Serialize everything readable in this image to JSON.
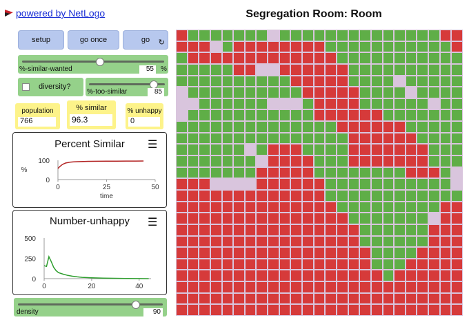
{
  "header": {
    "link_text": "powered by NetLogo",
    "title": "Segregation Room: Room"
  },
  "buttons": {
    "setup": "setup",
    "go_once": "go once",
    "go": "go",
    "forever_icon": "↻"
  },
  "sliders": {
    "similar_wanted": {
      "label": "%-similar-wanted",
      "value": "55",
      "unit": "%",
      "min": 0,
      "max": 100,
      "current": 55
    },
    "too_similar": {
      "label": "%-too-similar",
      "value": "85",
      "min": 0,
      "max": 100,
      "current": 85
    },
    "density": {
      "label": "density",
      "value": "90",
      "min": 50,
      "max": 99,
      "current": 90
    }
  },
  "switch": {
    "label": "diversity?",
    "on": false
  },
  "monitors": {
    "population": {
      "label": "population",
      "value": "766"
    },
    "percent_similar": {
      "label": "% similar",
      "value": "96.3"
    },
    "percent_unhappy": {
      "label": "% unhappy",
      "value": "0"
    }
  },
  "colors": {
    "red_agent": "#d63a3a",
    "green_agent": "#5fae47",
    "empty": "#d9c5dd",
    "button": "#b7c8ee",
    "slider": "#95d18a",
    "monitor": "#fdf38a"
  },
  "chart_data": [
    {
      "type": "line",
      "title": "Percent Similar",
      "ylabel": "%",
      "xlabel": "time",
      "x_ticks": [
        "0",
        "25",
        "50"
      ],
      "y_ticks": [
        "100",
        "0"
      ],
      "xlim": [
        0,
        50
      ],
      "ylim": [
        0,
        100
      ],
      "series": [
        {
          "name": "percent",
          "color": "#b22222",
          "x": [
            0,
            1,
            2,
            3,
            4,
            5,
            6,
            8,
            10,
            13,
            16,
            20,
            25,
            30,
            35,
            40,
            44
          ],
          "y": [
            58,
            68,
            76,
            82,
            86,
            88,
            90,
            92,
            93,
            94,
            94.5,
            95,
            95.5,
            95.8,
            96,
            96.2,
            96.3
          ]
        }
      ]
    },
    {
      "type": "line",
      "title": "Number-unhappy",
      "xlabel": "",
      "x_ticks": [
        "0",
        "20",
        "40"
      ],
      "y_ticks": [
        "500",
        "250",
        "0"
      ],
      "xlim": [
        0,
        45
      ],
      "ylim": [
        0,
        500
      ],
      "series": [
        {
          "name": "unhappy",
          "color": "#2e9e2e",
          "x": [
            0,
            1,
            2,
            3,
            4,
            5,
            6,
            8,
            10,
            12,
            14,
            16,
            20,
            25,
            30,
            35,
            40,
            44
          ],
          "y": [
            160,
            150,
            270,
            210,
            140,
            100,
            75,
            55,
            40,
            30,
            22,
            16,
            10,
            6,
            4,
            2,
            1,
            0
          ]
        }
      ]
    }
  ],
  "world": {
    "cols": 25,
    "rows": 25,
    "legend": "R=red agent, G=green agent, E=empty patch",
    "grid": [
      "RGGGGGGGEGGGGGGGGGGGGGGRR",
      "RRREGRRRRRRRRGGGGGGGGGGGR",
      "GRRRRRRRRRRRRRGGGGGGGGGGG",
      "GGGGGRREERRRRRRGGGGGGGGGG",
      "GGGGGGGGGGRRRRRGGGGEGGGGG",
      "EGGGGGGGGGGRRRRRGGGGEGGGG",
      "EEGGGGGGEEEGRRRRGGGGGGEGG",
      "EGGGGGGGGGGGRRRRRRGGGGGGG",
      "GGGGGGGGGGGGGGRRRRRRGGGGG",
      "GGGGGGGGGGGGGGGRRRRRRGGGG",
      "GGGGGGEGRRRGGGGRRRRRRRGGG",
      "GGGGGGGERRRRGGGRRRRRRRGGG",
      "GGGGGGGRRRRRGGGGGGGGRRRGE",
      "RRREEEERRRRRRGGGGGGGGGGGE",
      "RRRRRRRRRRRRRGGGGGGGGGGGG",
      "RRRRRRRRRRRRRRGGGGGGGGGRR",
      "RRRRRRRRRRRRRRRGGGGGGGERR",
      "RRRRRRRRRRRRRRRRGGGGGGRRR",
      "RRRRRRRRRRRRRRRRGGGGGGRRR",
      "RRRRRRRRRRRRRRRRRGGGGRRRR",
      "RRRRRRRRRRRRRRRRRGGGRRRRR",
      "RRRRRRRRRRRRRRRRRRGRRRRRR",
      "RRRRRRRRRRRRRRRRRRRRRRRRR",
      "RRRRRRRRRRRRRRRRRRRRRRRRR",
      "RRRRRRRRRRRRRRRRRRRRRRRRR"
    ]
  }
}
